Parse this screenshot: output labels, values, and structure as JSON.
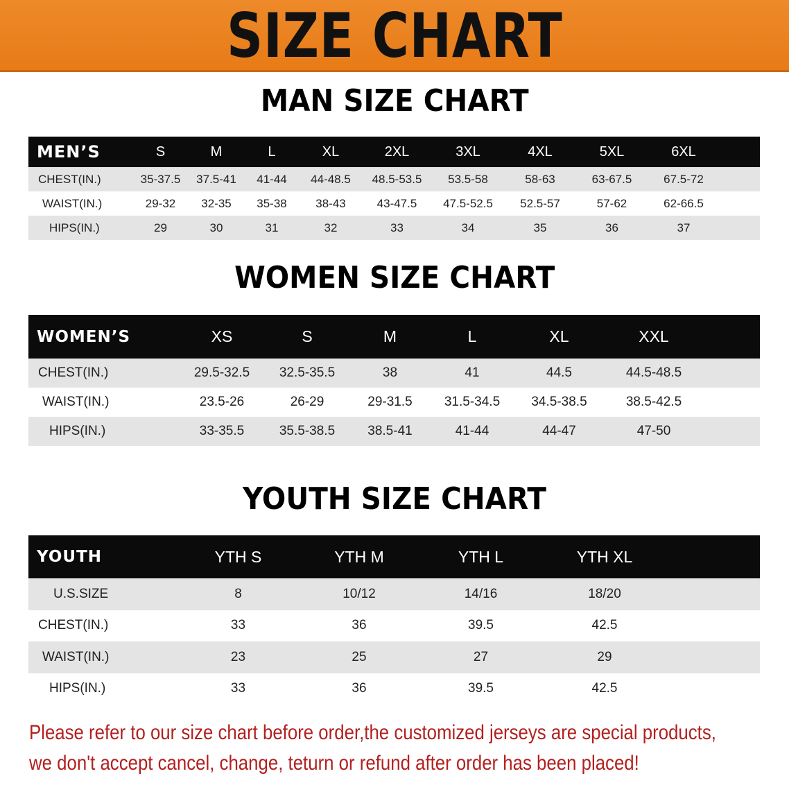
{
  "title": "SIZE CHART",
  "colors": {
    "banner": "#e98020",
    "header_row": "#0b0b0b",
    "stripe": "#e4e4e4",
    "note": "#b3201f"
  },
  "men": {
    "title": "MAN SIZE CHART",
    "header": [
      "MEN’S",
      "S",
      "M",
      "L",
      "XL",
      "2XL",
      "3XL",
      "4XL",
      "5XL",
      "6XL"
    ],
    "rows": [
      [
        "CHEST(IN.)",
        "35-37.5",
        "37.5-41",
        "41-44",
        "44-48.5",
        "48.5-53.5",
        "53.5-58",
        "58-63",
        "63-67.5",
        "67.5-72"
      ],
      [
        "WAIST(IN.)",
        "29-32",
        "32-35",
        "35-38",
        "38-43",
        "43-47.5",
        "47.5-52.5",
        "52.5-57",
        "57-62",
        "62-66.5"
      ],
      [
        "HIPS(IN.)",
        "29",
        "30",
        "31",
        "32",
        "33",
        "34",
        "35",
        "36",
        "37"
      ]
    ]
  },
  "women": {
    "title": "WOMEN SIZE CHART",
    "header": [
      "WOMEN’S",
      "XS",
      "S",
      "M",
      "L",
      "XL",
      "XXL"
    ],
    "rows": [
      [
        "CHEST(IN.)",
        "29.5-32.5",
        "32.5-35.5",
        "38",
        "41",
        "44.5",
        "44.5-48.5"
      ],
      [
        "WAIST(IN.)",
        "23.5-26",
        "26-29",
        "29-31.5",
        "31.5-34.5",
        "34.5-38.5",
        "38.5-42.5"
      ],
      [
        "HIPS(IN.)",
        "33-35.5",
        "35.5-38.5",
        "38.5-41",
        "41-44",
        "44-47",
        "47-50"
      ]
    ]
  },
  "youth": {
    "title": "YOUTH SIZE CHART",
    "header": [
      "YOUTH",
      "YTH S",
      "YTH M",
      "YTH L",
      "YTH XL"
    ],
    "rows": [
      [
        "U.S.SIZE",
        "8",
        "10/12",
        "14/16",
        "18/20"
      ],
      [
        "CHEST(IN.)",
        "33",
        "36",
        "39.5",
        "42.5"
      ],
      [
        "WAIST(IN.)",
        "23",
        "25",
        "27",
        "29"
      ],
      [
        "HIPS(IN.)",
        "33",
        "36",
        "39.5",
        "42.5"
      ]
    ]
  },
  "note": {
    "line1": "Please refer to our size chart before order,the customized jerseys are special products,",
    "line2": "we don't accept cancel, change, teturn or refund after order has been placed!"
  }
}
